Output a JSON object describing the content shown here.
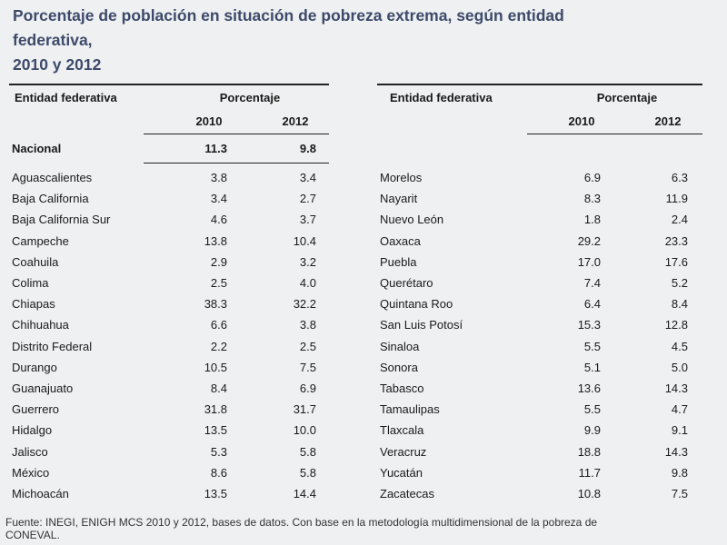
{
  "title": {
    "line1": "Porcentaje de población en situación de pobreza extrema, según entidad",
    "line2": "federativa,",
    "line3": "2010 y 2012"
  },
  "headers": {
    "entity": "Entidad federativa",
    "percentage": "Porcentaje",
    "year_2010": "2010",
    "year_2012": "2012"
  },
  "national": {
    "name": "Nacional",
    "v2010": "11.3",
    "v2012": "9.8"
  },
  "left_rows": [
    {
      "name": "Aguascalientes",
      "v2010": "3.8",
      "v2012": "3.4"
    },
    {
      "name": "Baja California",
      "v2010": "3.4",
      "v2012": "2.7"
    },
    {
      "name": "Baja California Sur",
      "v2010": "4.6",
      "v2012": "3.7"
    },
    {
      "name": "Campeche",
      "v2010": "13.8",
      "v2012": "10.4"
    },
    {
      "name": "Coahuila",
      "v2010": "2.9",
      "v2012": "3.2"
    },
    {
      "name": "Colima",
      "v2010": "2.5",
      "v2012": "4.0"
    },
    {
      "name": "Chiapas",
      "v2010": "38.3",
      "v2012": "32.2"
    },
    {
      "name": "Chihuahua",
      "v2010": "6.6",
      "v2012": "3.8"
    },
    {
      "name": "Distrito Federal",
      "v2010": "2.2",
      "v2012": "2.5"
    },
    {
      "name": "Durango",
      "v2010": "10.5",
      "v2012": "7.5"
    },
    {
      "name": "Guanajuato",
      "v2010": "8.4",
      "v2012": "6.9"
    },
    {
      "name": "Guerrero",
      "v2010": "31.8",
      "v2012": "31.7"
    },
    {
      "name": "Hidalgo",
      "v2010": "13.5",
      "v2012": "10.0"
    },
    {
      "name": "Jalisco",
      "v2010": "5.3",
      "v2012": "5.8"
    },
    {
      "name": "México",
      "v2010": "8.6",
      "v2012": "5.8"
    },
    {
      "name": "Michoacán",
      "v2010": "13.5",
      "v2012": "14.4"
    }
  ],
  "right_rows": [
    {
      "name": "Morelos",
      "v2010": "6.9",
      "v2012": "6.3"
    },
    {
      "name": "Nayarit",
      "v2010": "8.3",
      "v2012": "11.9"
    },
    {
      "name": "Nuevo León",
      "v2010": "1.8",
      "v2012": "2.4"
    },
    {
      "name": "Oaxaca",
      "v2010": "29.2",
      "v2012": "23.3"
    },
    {
      "name": "Puebla",
      "v2010": "17.0",
      "v2012": "17.6"
    },
    {
      "name": "Querétaro",
      "v2010": "7.4",
      "v2012": "5.2"
    },
    {
      "name": "Quintana Roo",
      "v2010": "6.4",
      "v2012": "8.4"
    },
    {
      "name": "San Luis Potosí",
      "v2010": "15.3",
      "v2012": "12.8"
    },
    {
      "name": "Sinaloa",
      "v2010": "5.5",
      "v2012": "4.5"
    },
    {
      "name": "Sonora",
      "v2010": "5.1",
      "v2012": "5.0"
    },
    {
      "name": "Tabasco",
      "v2010": "13.6",
      "v2012": "14.3"
    },
    {
      "name": "Tamaulipas",
      "v2010": "5.5",
      "v2012": "4.7"
    },
    {
      "name": "Tlaxcala",
      "v2010": "9.9",
      "v2012": "9.1"
    },
    {
      "name": "Veracruz",
      "v2010": "18.8",
      "v2012": "14.3"
    },
    {
      "name": "Yucatán",
      "v2010": "11.7",
      "v2012": "9.8"
    },
    {
      "name": "Zacatecas",
      "v2010": "10.8",
      "v2012": "7.5"
    }
  ],
  "source": {
    "line1": "Fuente: INEGI, ENIGH MCS 2010 y 2012, bases de datos. Con base en la metodología multidimensional de la pobreza de",
    "line2": "CONEVAL."
  },
  "colors": {
    "title": "#3d4a6a",
    "background": "#eef0f1"
  }
}
